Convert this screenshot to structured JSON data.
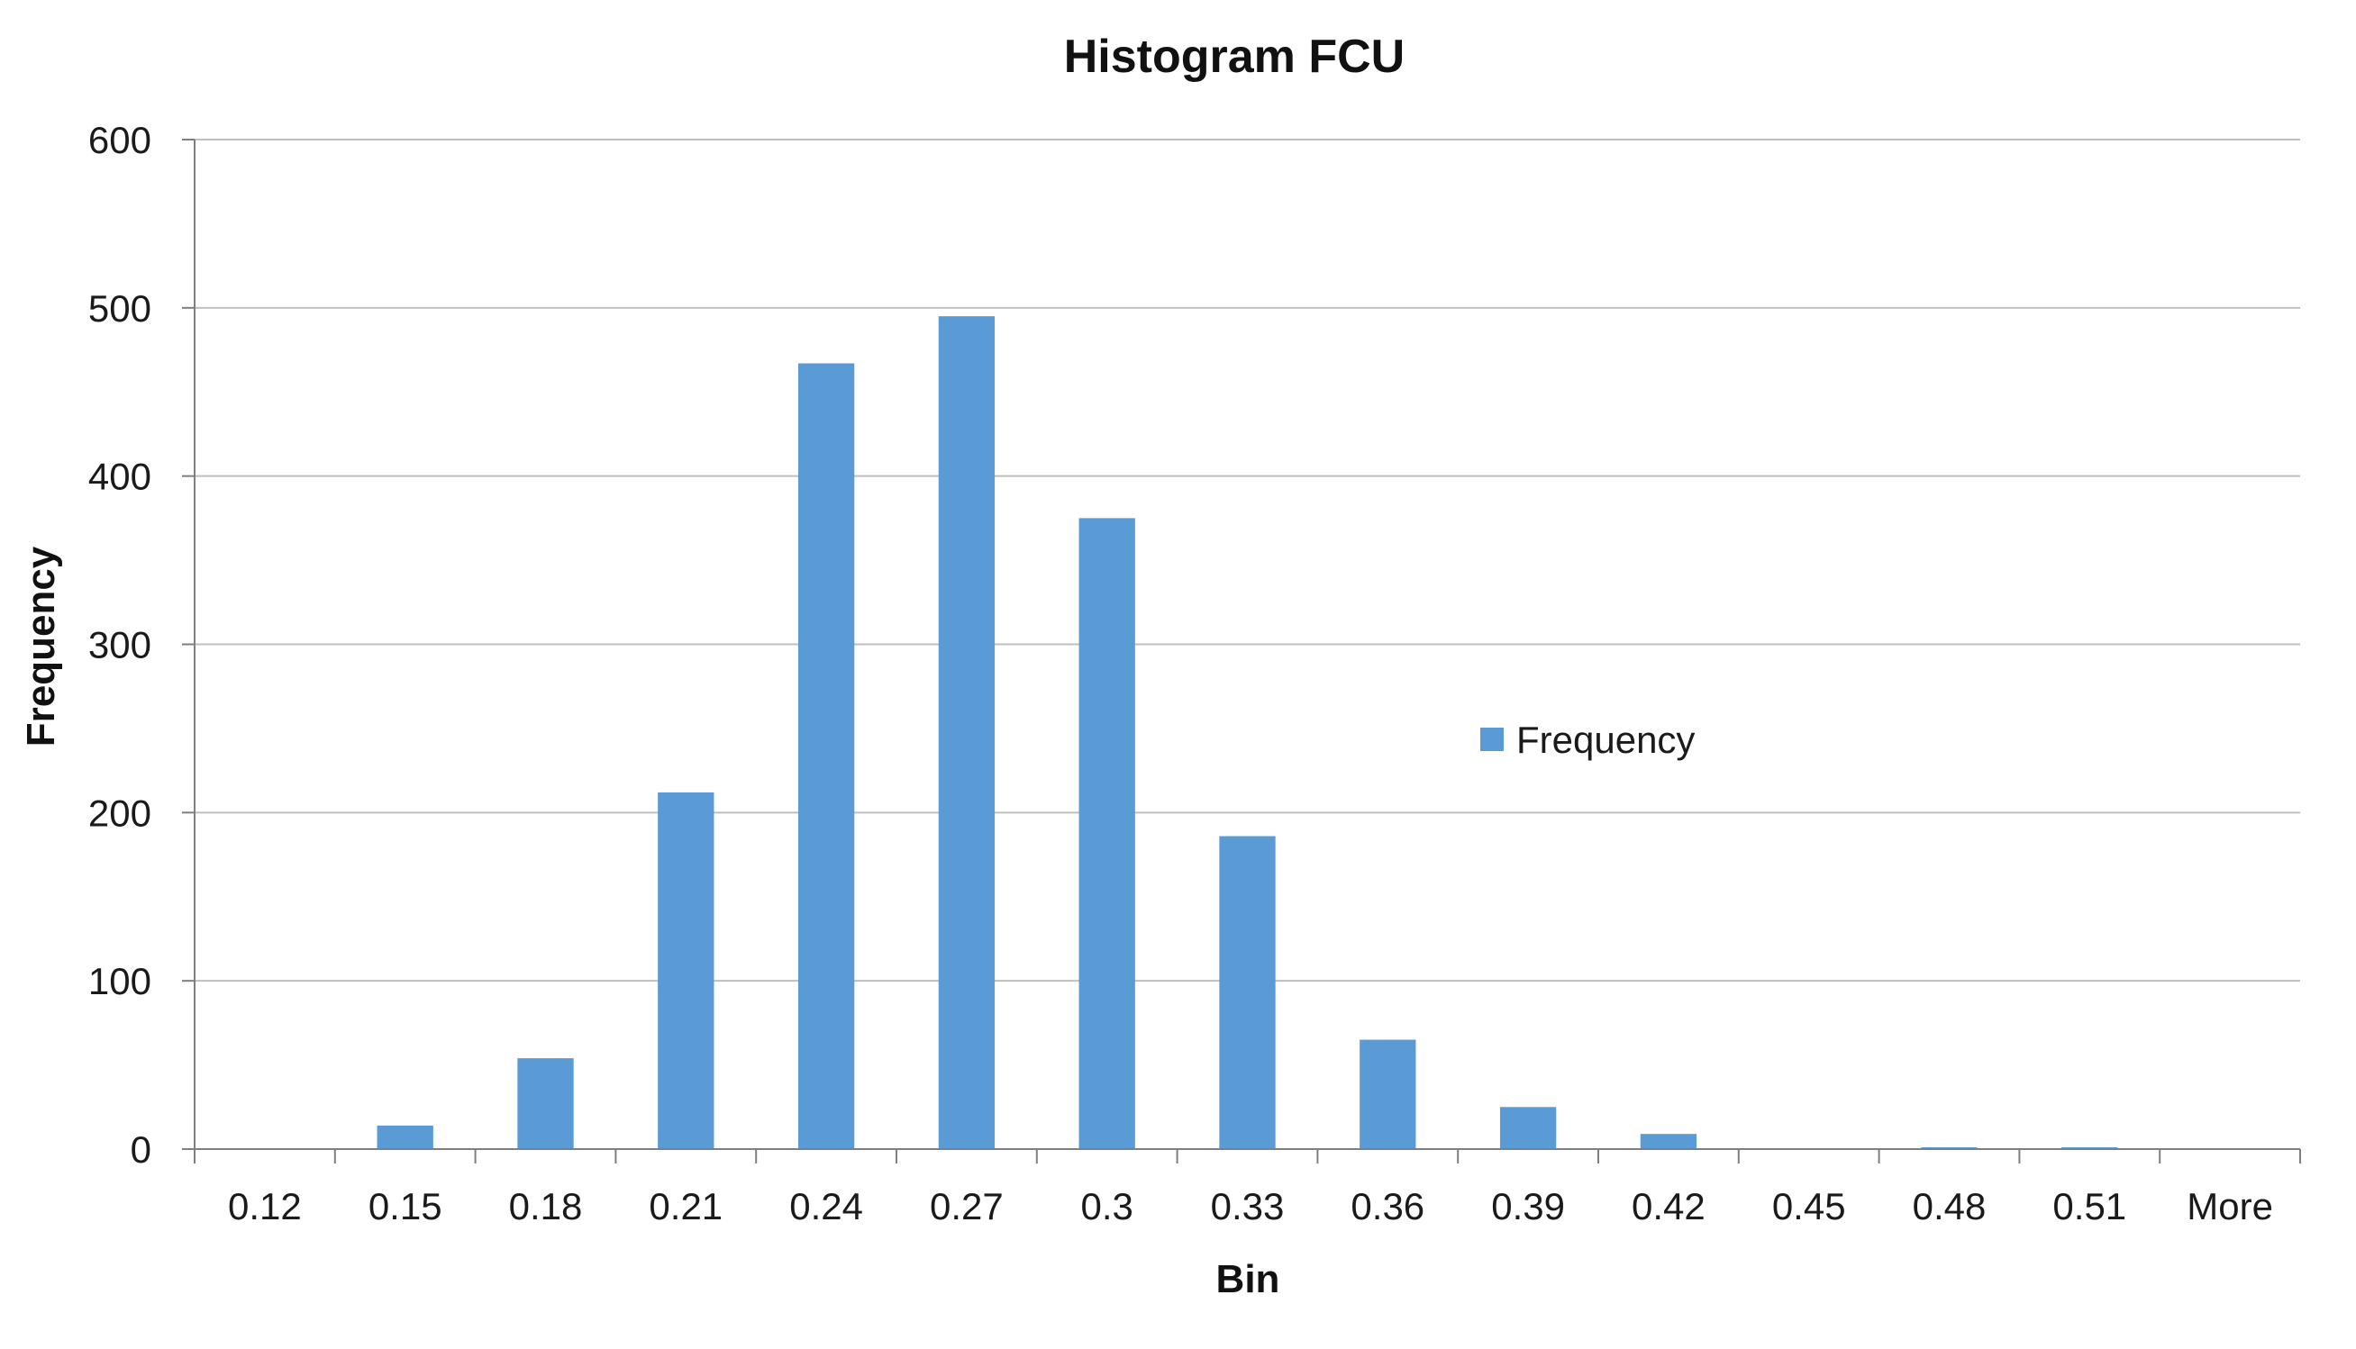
{
  "chart_data": {
    "type": "bar",
    "title": "Histogram FCU",
    "xlabel": "Bin",
    "ylabel": "Frequency",
    "categories": [
      "0.12",
      "0.15",
      "0.18",
      "0.21",
      "0.24",
      "0.27",
      "0.3",
      "0.33",
      "0.36",
      "0.39",
      "0.42",
      "0.45",
      "0.48",
      "0.51",
      "More"
    ],
    "series": [
      {
        "name": "Frequency",
        "values": [
          0,
          14,
          54,
          212,
          467,
          495,
          375,
          186,
          65,
          25,
          9,
          0,
          1,
          1,
          0
        ],
        "color": "#5b9bd5"
      }
    ],
    "ylim": [
      0,
      600
    ],
    "yticks": [
      0,
      100,
      200,
      300,
      400,
      500,
      600
    ],
    "grid": true,
    "legend_position": "right-center"
  }
}
